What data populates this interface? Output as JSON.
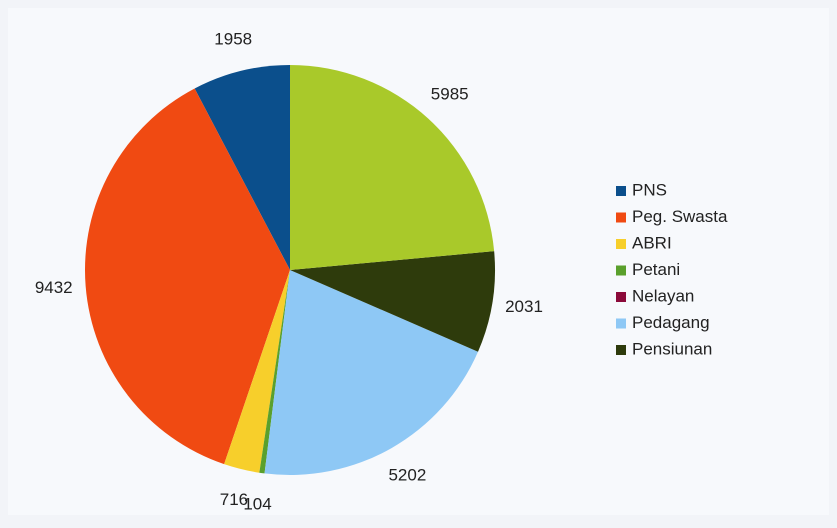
{
  "chart_data": {
    "type": "pie",
    "categories": [
      "PNS",
      "Peg. Swasta",
      "ABRI",
      "Petani",
      "Nelayan",
      "Pedagang",
      "Pensiunan",
      null
    ],
    "values": [
      1958,
      9432,
      716,
      104,
      0,
      5202,
      2031,
      5985
    ],
    "colors": [
      "#0b4f8c",
      "#f04a12",
      "#f7cf2b",
      "#5aa02c",
      "#8b0a3a",
      "#8ec8f5",
      "#2e3b0c",
      "#a9c92a"
    ],
    "legend": "right"
  }
}
